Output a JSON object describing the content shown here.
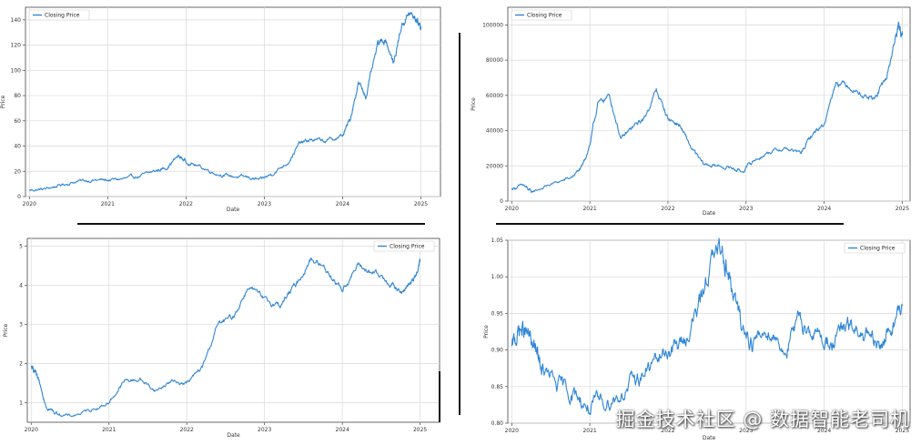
{
  "chart_data": [
    {
      "type": "line",
      "title": "",
      "xlabel": "Date",
      "ylabel": "Price",
      "legend": "top-left",
      "xlim": [
        2019.95,
        2025.25
      ],
      "ylim": [
        0,
        150
      ],
      "x_ticks": [
        2020,
        2021,
        2022,
        2023,
        2024,
        2025
      ],
      "x_tick_labels": [
        "2020",
        "2021",
        "2022",
        "2023",
        "2024",
        "2025"
      ],
      "y_ticks": [
        0,
        20,
        40,
        60,
        80,
        100,
        120,
        140
      ],
      "y_tick_labels": [
        "0",
        "20",
        "40",
        "60",
        "80",
        "100",
        "120",
        "140"
      ],
      "grid": true,
      "color": "#2f86d6",
      "series": [
        {
          "name": "Closing Price",
          "x": [
            2020.0,
            2020.2,
            2020.4,
            2020.6,
            2020.8,
            2021.0,
            2021.2,
            2021.4,
            2021.6,
            2021.75,
            2021.9,
            2022.0,
            2022.2,
            2022.4,
            2022.6,
            2022.8,
            2022.95,
            2023.1,
            2023.3,
            2023.45,
            2023.6,
            2023.8,
            2024.0,
            2024.1,
            2024.2,
            2024.3,
            2024.45,
            2024.55,
            2024.65,
            2024.75,
            2024.85,
            2024.95,
            2025.0
          ],
          "y": [
            5,
            6,
            9,
            12,
            13,
            13,
            14,
            16,
            20,
            23,
            32,
            28,
            23,
            18,
            16,
            15,
            13,
            18,
            27,
            42,
            45,
            44,
            48,
            62,
            90,
            80,
            120,
            125,
            105,
            135,
            145,
            140,
            135
          ]
        }
      ]
    },
    {
      "type": "line",
      "title": "",
      "xlabel": "Date",
      "ylabel": "Price",
      "legend": "top-left",
      "xlim": [
        2019.95,
        2025.1
      ],
      "ylim": [
        0,
        110000
      ],
      "x_ticks": [
        2020,
        2021,
        2022,
        2023,
        2024,
        2025
      ],
      "x_tick_labels": [
        "2020",
        "2021",
        "2022",
        "2023",
        "2024",
        "2025"
      ],
      "y_ticks": [
        0,
        20000,
        40000,
        60000,
        80000,
        100000
      ],
      "y_tick_labels": [
        "0",
        "20000",
        "40000",
        "60000",
        "80000",
        "100000"
      ],
      "grid": true,
      "color": "#2f86d6",
      "series": [
        {
          "name": "Closing Price",
          "x": [
            2020.0,
            2020.15,
            2020.25,
            2020.5,
            2020.75,
            2020.9,
            2021.0,
            2021.1,
            2021.25,
            2021.4,
            2021.55,
            2021.7,
            2021.85,
            2022.0,
            2022.15,
            2022.3,
            2022.45,
            2022.6,
            2022.8,
            2022.95,
            2023.1,
            2023.3,
            2023.5,
            2023.7,
            2023.85,
            2024.0,
            2024.15,
            2024.3,
            2024.5,
            2024.65,
            2024.8,
            2024.9,
            2024.95,
            2025.0
          ],
          "y": [
            7000,
            9000,
            5000,
            9500,
            13000,
            19000,
            32000,
            55000,
            60000,
            35000,
            42000,
            47000,
            63000,
            47000,
            43000,
            30000,
            21000,
            20000,
            19000,
            16800,
            23000,
            28000,
            30000,
            27000,
            38000,
            44000,
            68000,
            66000,
            60000,
            58000,
            70000,
            90000,
            100000,
            94000
          ]
        }
      ]
    },
    {
      "type": "line",
      "title": "",
      "xlabel": "Date",
      "ylabel": "Price",
      "legend": "top-right",
      "xlim": [
        2019.95,
        2025.25
      ],
      "ylim": [
        0.5,
        5.2
      ],
      "x_ticks": [
        2020,
        2021,
        2022,
        2023,
        2024,
        2025
      ],
      "x_tick_labels": [
        "2020",
        "2021",
        "2022",
        "2023",
        "2024",
        "2025"
      ],
      "y_ticks": [
        1,
        2,
        3,
        4,
        5
      ],
      "y_tick_labels": [
        "1",
        "2",
        "3",
        "4",
        "5"
      ],
      "grid": true,
      "color": "#2f86d6",
      "series": [
        {
          "name": "Closing Price",
          "x": [
            2020.0,
            2020.05,
            2020.1,
            2020.2,
            2020.3,
            2020.5,
            2020.75,
            2021.0,
            2021.2,
            2021.4,
            2021.6,
            2021.8,
            2022.0,
            2022.2,
            2022.4,
            2022.6,
            2022.8,
            2023.0,
            2023.2,
            2023.4,
            2023.6,
            2023.8,
            2024.0,
            2024.2,
            2024.4,
            2024.6,
            2024.75,
            2024.9,
            2025.0
          ],
          "y": [
            1.9,
            1.8,
            1.5,
            0.9,
            0.75,
            0.65,
            0.8,
            1.0,
            1.55,
            1.6,
            1.3,
            1.55,
            1.5,
            1.9,
            3.0,
            3.2,
            4.0,
            3.6,
            3.5,
            4.0,
            4.7,
            4.4,
            3.9,
            4.5,
            4.3,
            4.1,
            3.8,
            4.1,
            4.6
          ]
        }
      ]
    },
    {
      "type": "line",
      "title": "",
      "xlabel": "Date",
      "ylabel": "Price",
      "legend": "top-right",
      "xlim": [
        2019.95,
        2025.1
      ],
      "ylim": [
        0.8,
        1.05
      ],
      "x_ticks": [
        2020,
        2021,
        2022,
        2023,
        2024,
        2025
      ],
      "x_tick_labels": [
        "2020",
        "2021",
        "2022",
        "2023",
        "2024",
        "2025"
      ],
      "y_ticks": [
        0.8,
        0.85,
        0.9,
        0.95,
        1.0,
        1.05
      ],
      "y_tick_labels": [
        "0.80",
        "0.85",
        "0.90",
        "0.95",
        "1.00",
        "1.05"
      ],
      "grid": true,
      "color": "#2f86d6",
      "series": [
        {
          "name": "Closing Price",
          "x": [
            2020.0,
            2020.1,
            2020.2,
            2020.3,
            2020.4,
            2020.6,
            2020.8,
            2021.0,
            2021.2,
            2021.4,
            2021.6,
            2021.8,
            2022.0,
            2022.2,
            2022.4,
            2022.55,
            2022.7,
            2022.8,
            2022.95,
            2023.1,
            2023.3,
            2023.5,
            2023.7,
            2023.9,
            2024.1,
            2024.3,
            2024.5,
            2024.7,
            2024.85,
            2025.0
          ],
          "y": [
            0.9,
            0.93,
            0.92,
            0.9,
            0.87,
            0.85,
            0.84,
            0.82,
            0.83,
            0.84,
            0.86,
            0.88,
            0.9,
            0.91,
            0.96,
            1.02,
            1.04,
            0.99,
            0.93,
            0.91,
            0.93,
            0.9,
            0.94,
            0.92,
            0.91,
            0.93,
            0.92,
            0.9,
            0.93,
            0.96
          ]
        }
      ]
    }
  ],
  "watermark": "掘金技术社区 @ 数据智能老司机"
}
